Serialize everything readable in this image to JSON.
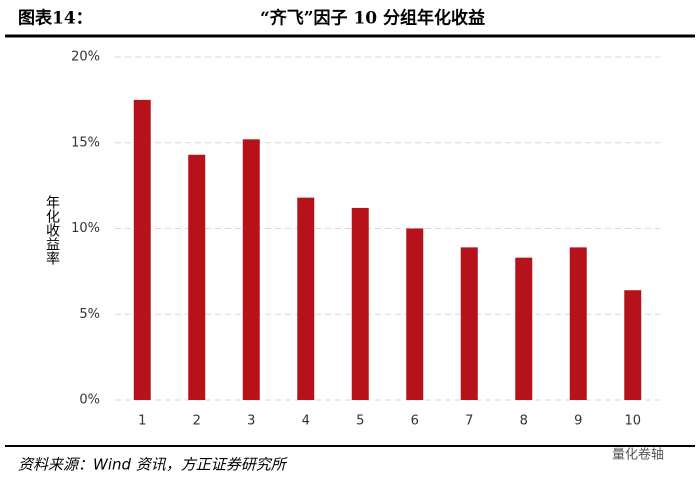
{
  "chart_data": {
    "type": "bar",
    "figure_label": "图表14：",
    "title": "“齐飞”因子 10 分组年化收益",
    "y_label": "年化收益率",
    "source": "资料来源：Wind 资讯，方正证券研究所",
    "watermark": "量化卷轴",
    "categories": [
      "1",
      "2",
      "3",
      "4",
      "5",
      "6",
      "7",
      "8",
      "9",
      "10"
    ],
    "values": [
      17.5,
      14.3,
      15.2,
      11.8,
      11.2,
      10.0,
      8.9,
      8.3,
      8.9,
      6.4
    ],
    "color": "#b5121b",
    "ylim": [
      0,
      20
    ],
    "yticks": [
      {
        "value": 0,
        "label": "0%"
      },
      {
        "value": 5,
        "label": "5%"
      },
      {
        "value": 10,
        "label": "10%"
      },
      {
        "value": 15,
        "label": "15%"
      },
      {
        "value": 20,
        "label": "20%"
      }
    ],
    "grid": true
  }
}
